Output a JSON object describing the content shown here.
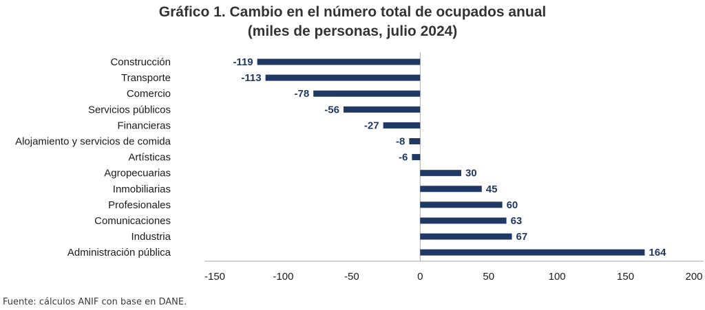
{
  "chart_data": {
    "type": "bar",
    "orientation": "horizontal",
    "title_line1": "Gráfico 1. Cambio en el número total de ocupados anual",
    "title_line2": "(miles de personas, julio 2024)",
    "categories": [
      "Construcción",
      "Transporte",
      "Comercio",
      "Servicios públicos",
      "Financieras",
      "Alojamiento y servicios de comida",
      "Artísticas",
      "Agropecuarias",
      "Inmobiliarias",
      "Profesionales",
      "Comunicaciones",
      "Industria",
      "Administración pública"
    ],
    "values": [
      -119,
      -113,
      -78,
      -56,
      -27,
      -8,
      -6,
      30,
      45,
      60,
      63,
      67,
      164
    ],
    "xlim": [
      -150,
      200
    ],
    "xticks": [
      -150,
      -100,
      -50,
      0,
      50,
      100,
      150,
      200
    ],
    "grid": false,
    "legend": "none",
    "bar_color": "#1F3864",
    "label_color": "#1F3864"
  },
  "source": "Fuente: cálculos ANIF con base en DANE."
}
